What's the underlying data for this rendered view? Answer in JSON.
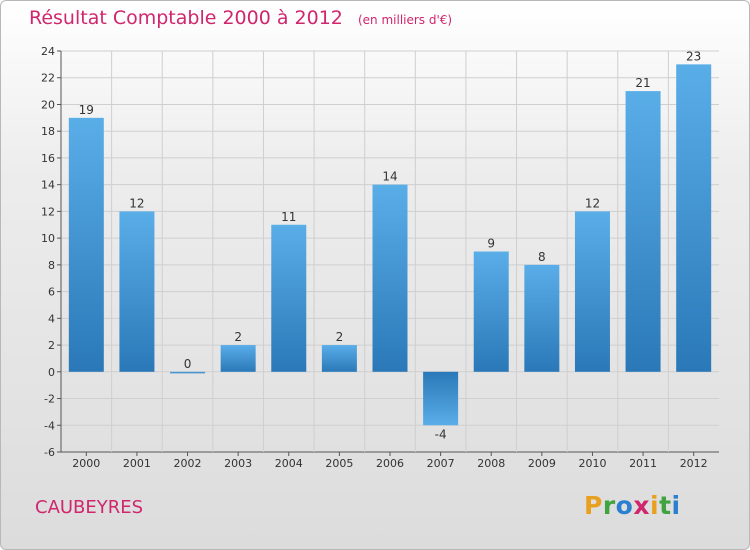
{
  "header": {
    "title": "Résultat Comptable 2000 à 2012",
    "unit": "(en milliers d'€)"
  },
  "footer": {
    "commune": "CAUBEYRES",
    "brand": "Proxiti",
    "brand_letter_colors": [
      "#e8a020",
      "#3fa33f",
      "#2a7fd0",
      "#d0266e",
      "#e8a020",
      "#3fa33f",
      "#2a7fd0"
    ]
  },
  "colors": {
    "title": "#d0266e",
    "bar_top": "#5aaee8",
    "bar_bottom": "#2a78b8",
    "grid": "#cfcfcf"
  },
  "chart_data": {
    "type": "bar",
    "title": "Résultat Comptable 2000 à 2012",
    "subtitle": "(en milliers d'€)",
    "xlabel": "",
    "ylabel": "",
    "categories": [
      "2000",
      "2001",
      "2002",
      "2003",
      "2004",
      "2005",
      "2006",
      "2007",
      "2008",
      "2009",
      "2010",
      "2011",
      "2012"
    ],
    "values": [
      19,
      12,
      0,
      2,
      11,
      2,
      14,
      -4,
      9,
      8,
      12,
      21,
      23
    ],
    "ylim": [
      -6,
      24
    ],
    "yticks": [
      -6,
      -4,
      -2,
      0,
      2,
      4,
      6,
      8,
      10,
      12,
      14,
      16,
      18,
      20,
      22,
      24
    ],
    "grid": true,
    "legend": "none"
  }
}
